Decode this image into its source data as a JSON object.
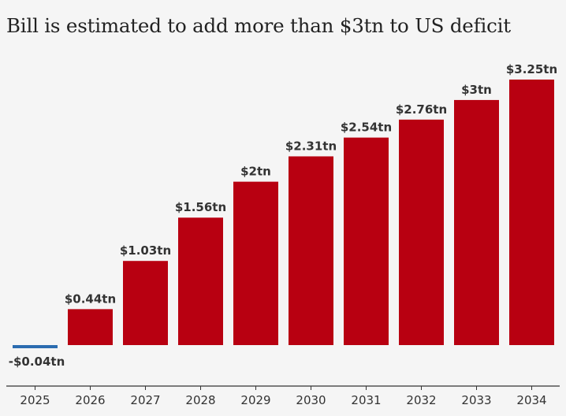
{
  "chart_data": {
    "type": "bar",
    "title": "Bill is estimated to add more than $3tn to US deficit",
    "categories": [
      "2025",
      "2026",
      "2027",
      "2028",
      "2029",
      "2030",
      "2031",
      "2032",
      "2033",
      "2034"
    ],
    "values": [
      -0.04,
      0.44,
      1.03,
      1.56,
      2.0,
      2.31,
      2.54,
      2.76,
      3.0,
      3.25
    ],
    "data_labels": [
      "-$0.04tn",
      "$0.44tn",
      "$1.03tn",
      "$1.56tn",
      "$2tn",
      "$2.31tn",
      "$2.54tn",
      "$2.76tn",
      "$3tn",
      "$3.25tn"
    ],
    "xlabel": "",
    "ylabel": "",
    "ylim": [
      -0.04,
      3.25
    ],
    "grid": false,
    "legend": "none",
    "colors": {
      "positive": "#b80011",
      "negative": "#2b6cb0",
      "axis": "#333333",
      "background": "#f5f5f5"
    }
  }
}
